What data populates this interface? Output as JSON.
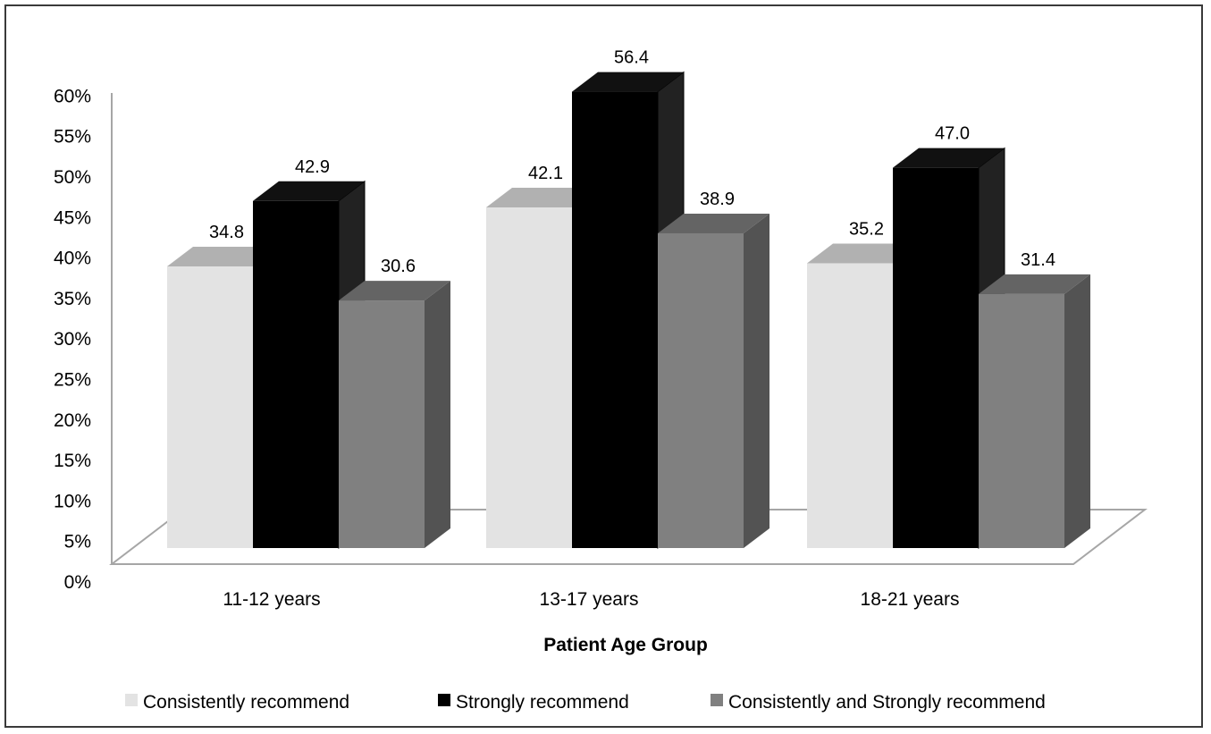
{
  "chart_data": {
    "type": "bar",
    "categories": [
      "11-12 years",
      "13-17 years",
      "18-21 years"
    ],
    "series": [
      {
        "name": "Consistently recommend",
        "values": [
          34.8,
          42.1,
          35.2
        ],
        "labels": [
          "34.8",
          "42.1",
          "35.2"
        ],
        "color": "#e3e3e3"
      },
      {
        "name": "Strongly recommend",
        "values": [
          42.9,
          56.4,
          47.0
        ],
        "labels": [
          "42.9",
          "56.4",
          "47.0"
        ],
        "color": "#000000"
      },
      {
        "name": "Consistently and Strongly recommend",
        "values": [
          30.6,
          38.9,
          31.4
        ],
        "labels": [
          "30.6",
          "38.9",
          "31.4"
        ],
        "color": "#808080"
      }
    ],
    "title": "",
    "xlabel": "Patient Age Group",
    "ylabel": "",
    "ylim": [
      0,
      60
    ],
    "yticks": [
      "0%",
      "5%",
      "10%",
      "15%",
      "20%",
      "25%",
      "30%",
      "35%",
      "40%",
      "45%",
      "50%",
      "55%",
      "60%"
    ],
    "style": "3d-clustered-column",
    "legend": "bottom",
    "grid": false
  }
}
